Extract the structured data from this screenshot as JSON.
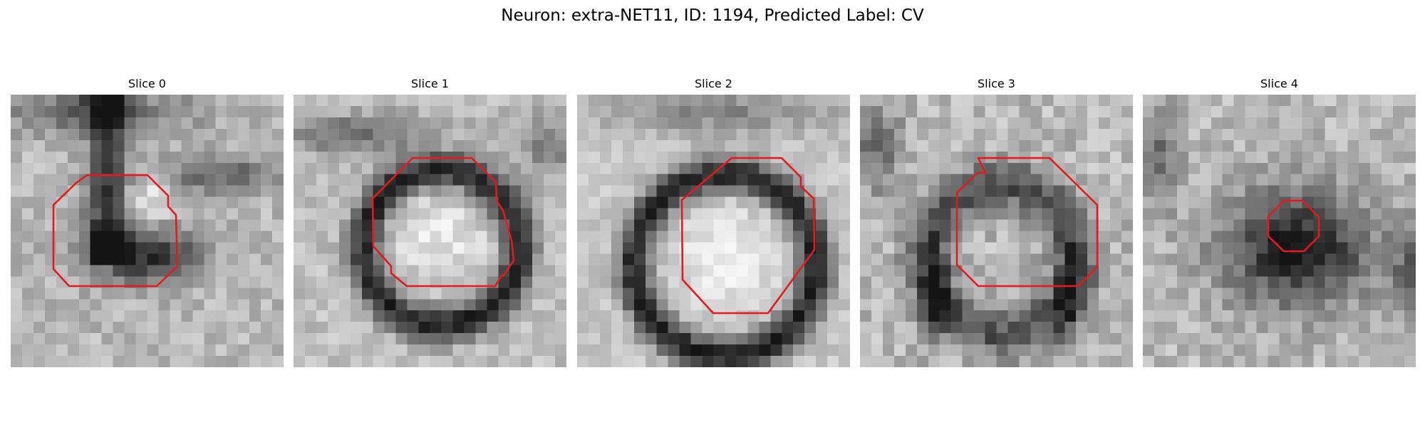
{
  "figure": {
    "title": "Neuron: extra-NET11, ID: 1194, Predicted Label: CV",
    "contour_color": "#e41a1c"
  },
  "panels": [
    {
      "title": "Slice 0"
    },
    {
      "title": "Slice 1"
    },
    {
      "title": "Slice 2"
    },
    {
      "title": "Slice 3"
    },
    {
      "title": "Slice 4"
    }
  ]
}
